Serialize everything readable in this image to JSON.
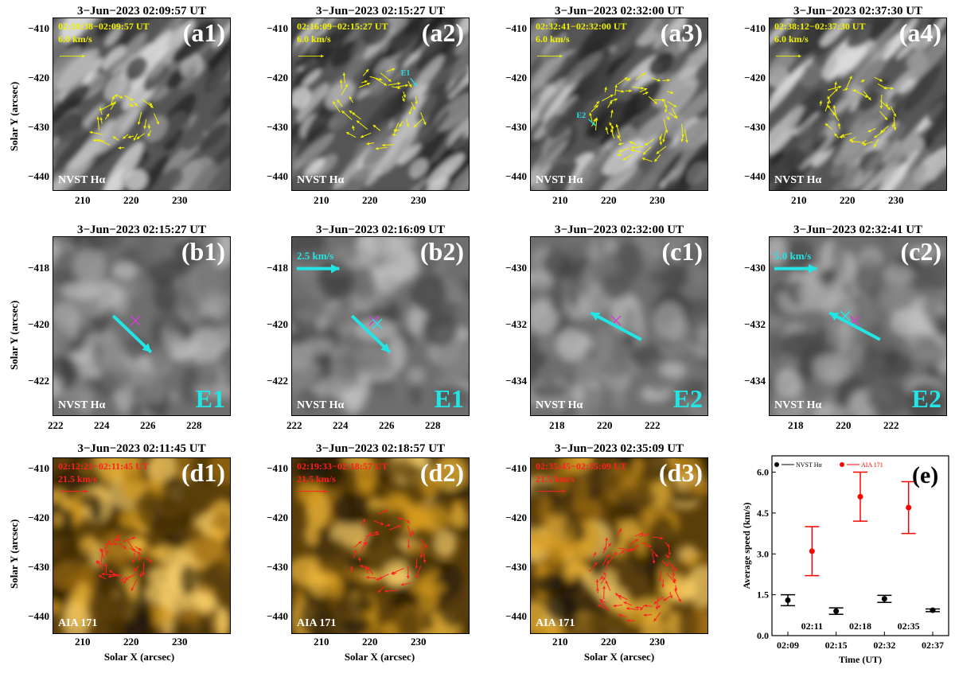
{
  "row_a": [
    {
      "id": "a1",
      "title": "3−Jun−2023 02:09:57 UT",
      "time_range": "02:10:38−02:09:57 UT",
      "speed": "6.0 km/s",
      "tag": "(a1)",
      "instrument": "NVST Hα",
      "xticks": [
        "210",
        "220",
        "230"
      ]
    },
    {
      "id": "a2",
      "title": "3−Jun−2023 02:15:27 UT",
      "time_range": "02:16:09−02:15:27 UT",
      "speed": "6.0 km/s",
      "tag": "(a2)",
      "instrument": "NVST Hα",
      "xticks": [
        "210",
        "220",
        "230"
      ],
      "marker": "E1"
    },
    {
      "id": "a3",
      "title": "3−Jun−2023 02:32:00 UT",
      "time_range": "02:32:41−02:32:00 UT",
      "speed": "6.0 km/s",
      "tag": "(a3)",
      "instrument": "NVST Hα",
      "xticks": [
        "210",
        "220",
        "230"
      ],
      "marker": "E2"
    },
    {
      "id": "a4",
      "title": "3−Jun−2023 02:37:30 UT",
      "time_range": "02:38:12−02:37:30 UT",
      "speed": "6.0 km/s",
      "tag": "(a4)",
      "instrument": "NVST Hα",
      "xticks": [
        "210",
        "220",
        "230"
      ]
    }
  ],
  "row_a_yticks": [
    "−410",
    "−420",
    "−430",
    "−440"
  ],
  "row_b": [
    {
      "id": "b1",
      "title": "3−Jun−2023 02:15:27 UT",
      "tag": "(b1)",
      "event": "E1",
      "instrument": "NVST Hα",
      "speed": "",
      "xticks": [
        "222",
        "224",
        "226",
        "228"
      ],
      "yticks": [
        "−418",
        "−420",
        "−422"
      ]
    },
    {
      "id": "b2",
      "title": "3−Jun−2023 02:16:09 UT",
      "tag": "(b2)",
      "event": "E1",
      "instrument": "NVST Hα",
      "speed": "2.5 km/s",
      "xticks": [
        "222",
        "224",
        "226",
        "228"
      ],
      "yticks": [
        "−418",
        "−420",
        "−422"
      ]
    },
    {
      "id": "c1",
      "title": "3−Jun−2023 02:32:00 UT",
      "tag": "(c1)",
      "event": "E2",
      "instrument": "NVST Hα",
      "speed": "",
      "xticks": [
        "218",
        "220",
        "222"
      ],
      "yticks": [
        "−430",
        "−432",
        "−434"
      ]
    },
    {
      "id": "c2",
      "title": "3−Jun−2023 02:32:41 UT",
      "tag": "(c2)",
      "event": "E2",
      "instrument": "NVST Hα",
      "speed": "5.0 km/s",
      "xticks": [
        "218",
        "220",
        "222"
      ],
      "yticks": [
        "−430",
        "−432",
        "−434"
      ]
    }
  ],
  "row_d": [
    {
      "id": "d1",
      "title": "3−Jun−2023 02:11:45 UT",
      "time_range": "02:12:21−02:11:45 UT",
      "speed": "21.5 km/s",
      "tag": "(d1)",
      "instrument": "AIA 171",
      "xticks": [
        "210",
        "220",
        "230"
      ]
    },
    {
      "id": "d2",
      "title": "3−Jun−2023 02:18:57 UT",
      "time_range": "02:19:33−02:18:57 UT",
      "speed": "21.5 km/s",
      "tag": "(d2)",
      "instrument": "AIA 171",
      "xticks": [
        "210",
        "220",
        "230"
      ]
    },
    {
      "id": "d3",
      "title": "3−Jun−2023 02:35:09 UT",
      "time_range": "02:35:45−02:35:09 UT",
      "speed": "21.5 km/s",
      "tag": "(d3)",
      "instrument": "AIA 171",
      "xticks": [
        "210",
        "220",
        "230"
      ]
    }
  ],
  "axis_labels": {
    "y": "Solar Y (arcsec)",
    "x": "Solar X (arcsec)"
  },
  "chart_data": {
    "type": "scatter",
    "tag": "(e)",
    "ylabel": "Average speed (km/s)",
    "xlabel": "Time (UT)",
    "ylim": [
      0,
      6.6
    ],
    "yticks": [
      "0.0",
      "1.5",
      "3.0",
      "4.5",
      "6.0"
    ],
    "legend": {
      "placement": "top-left",
      "entries": [
        {
          "name": "NVST Hα",
          "color": "#000000"
        },
        {
          "name": "AIA 171",
          "color": "#ff0000"
        }
      ]
    },
    "x_bottom_labels": [
      "02:09",
      "02:15",
      "02:32",
      "02:37"
    ],
    "x_top_labels": [
      "02:11",
      "02:18",
      "02:35"
    ],
    "series": [
      {
        "name": "NVST Hα",
        "color": "#000000",
        "points": [
          {
            "x": 0,
            "y": 1.3,
            "err": 0.2
          },
          {
            "x": 2,
            "y": 0.9,
            "err": 0.12
          },
          {
            "x": 4,
            "y": 1.35,
            "err": 0.13
          },
          {
            "x": 6,
            "y": 0.93,
            "err": 0.05
          }
        ]
      },
      {
        "name": "AIA 171",
        "color": "#ff0000",
        "points": [
          {
            "x": 1,
            "y": 3.1,
            "err": 0.9
          },
          {
            "x": 3,
            "y": 5.1,
            "err": 0.9
          },
          {
            "x": 5,
            "y": 4.7,
            "err": 0.95
          }
        ]
      }
    ]
  },
  "colors": {
    "yellow": "#f0f000",
    "red": "#ff2020",
    "cyan": "#22e5e5",
    "magenta": "#d040d0"
  }
}
